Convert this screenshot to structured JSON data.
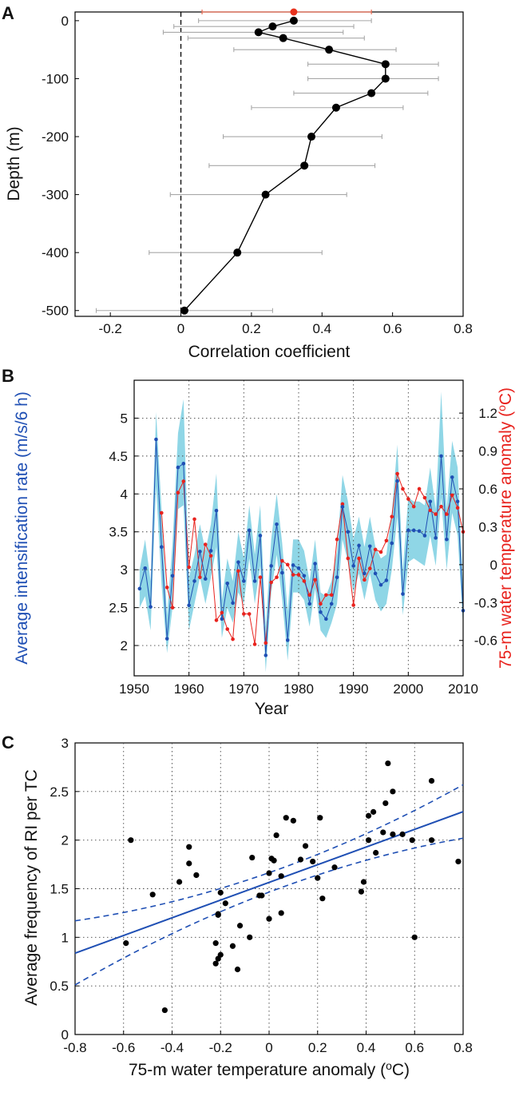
{
  "chart_data": [
    {
      "panel": "A",
      "type": "scatter",
      "xlabel": "Correlation coefficient",
      "ylabel": "Depth (m)",
      "xlim": [
        -0.3,
        0.8
      ],
      "ylim": [
        -510,
        15
      ],
      "xticks": [
        -0.2,
        0,
        0.2,
        0.4,
        0.6,
        0.8
      ],
      "yticks": [
        0,
        -100,
        -200,
        -300,
        -400,
        -500
      ],
      "reference_line": {
        "x": 0,
        "style": "dashed"
      },
      "highlight": {
        "depth": 15,
        "r": 0.32,
        "lo": 0.06,
        "hi": 0.54,
        "color": "#e8321e",
        "errcolor": "#e8684f"
      },
      "profile": {
        "color": "#000000",
        "errcolor": "#a8a8a8",
        "depth": [
          0,
          -10,
          -20,
          -30,
          -50,
          -75,
          -100,
          -125,
          -150,
          -200,
          -250,
          -300,
          -400,
          -500
        ],
        "r": [
          0.32,
          0.26,
          0.22,
          0.29,
          0.42,
          0.58,
          0.58,
          0.54,
          0.44,
          0.37,
          0.35,
          0.24,
          0.16,
          0.01
        ],
        "lo": [
          0.05,
          -0.02,
          -0.05,
          0.02,
          0.15,
          0.36,
          0.36,
          0.32,
          0.2,
          0.12,
          0.08,
          -0.03,
          -0.09,
          -0.24
        ],
        "hi": [
          0.54,
          0.49,
          0.46,
          0.52,
          0.61,
          0.73,
          0.73,
          0.7,
          0.63,
          0.57,
          0.55,
          0.47,
          0.4,
          0.26
        ]
      }
    },
    {
      "panel": "B",
      "type": "line",
      "xlabel": "Year",
      "ylabel_left": "Average intensification rate (m/s/6 h)",
      "ylabel_right": "75-m water temperature anomaly (",
      "ylabel_right_sup": "o",
      "ylabel_right_tail": "C)",
      "xlim": [
        1950,
        2010
      ],
      "ylim_left": [
        1.6,
        5.5
      ],
      "ylim_right": [
        -0.88,
        1.46
      ],
      "xticks": [
        1950,
        1960,
        1970,
        1980,
        1990,
        2000,
        2010
      ],
      "yticks_left": [
        2,
        2.5,
        3,
        3.5,
        4,
        4.5,
        5
      ],
      "yticks_right": [
        -0.6,
        -0.3,
        0,
        0.3,
        0.6,
        0.9,
        1.2
      ],
      "x": [
        1951,
        1952,
        1953,
        1954,
        1955,
        1956,
        1957,
        1958,
        1959,
        1960,
        1961,
        1962,
        1963,
        1964,
        1965,
        1966,
        1967,
        1968,
        1969,
        1970,
        1971,
        1972,
        1973,
        1974,
        1975,
        1976,
        1977,
        1978,
        1979,
        1980,
        1981,
        1982,
        1983,
        1984,
        1985,
        1986,
        1987,
        1988,
        1989,
        1990,
        1991,
        1992,
        1993,
        1994,
        1995,
        1996,
        1997,
        1998,
        1999,
        2000,
        2001,
        2002,
        2003,
        2004,
        2005,
        2006,
        2007,
        2008,
        2009,
        2010
      ],
      "series": [
        {
          "name": "intensification rate",
          "axis": "left",
          "color": "#1f4fb4",
          "band_color": "#8fd6e6",
          "values": [
            2.75,
            3.02,
            2.51,
            4.72,
            3.3,
            2.09,
            2.92,
            4.35,
            4.4,
            2.53,
            2.85,
            3.24,
            2.88,
            3.25,
            3.78,
            2.35,
            2.82,
            2.56,
            3.1,
            2.85,
            3.52,
            2.85,
            3.45,
            1.87,
            3.05,
            3.6,
            2.96,
            2.07,
            3.06,
            3.02,
            2.92,
            2.55,
            3.08,
            2.44,
            2.35,
            2.55,
            2.9,
            3.83,
            3.5,
            3.05,
            3.32,
            2.95,
            3.31,
            2.95,
            2.8,
            2.86,
            3.35,
            4.17,
            2.68,
            3.52,
            3.52,
            3.51,
            3.45,
            3.9,
            3.42,
            4.5,
            3.4,
            4.22,
            3.9,
            2.46
          ],
          "band_low": [
            2.5,
            2.65,
            2.2,
            4.1,
            2.8,
            1.9,
            2.5,
            3.8,
            3.85,
            2.2,
            2.55,
            2.9,
            2.55,
            2.9,
            3.3,
            2.1,
            2.5,
            2.3,
            2.7,
            2.55,
            3.15,
            2.55,
            3.05,
            1.65,
            2.7,
            3.2,
            2.6,
            1.8,
            2.7,
            2.7,
            2.6,
            2.25,
            2.75,
            2.2,
            2.1,
            2.3,
            2.55,
            3.4,
            3.1,
            2.7,
            2.95,
            2.6,
            2.95,
            2.6,
            2.45,
            2.55,
            3.0,
            3.7,
            2.4,
            3.1,
            3.15,
            3.1,
            3.05,
            3.45,
            3.05,
            3.95,
            3.0,
            3.75,
            3.45,
            2.25
          ],
          "band_high": [
            3.0,
            3.4,
            2.85,
            5.08,
            3.8,
            2.4,
            3.35,
            4.8,
            5.25,
            2.9,
            3.2,
            3.6,
            3.25,
            3.6,
            4.27,
            2.6,
            3.15,
            2.85,
            3.5,
            3.15,
            3.85,
            3.2,
            3.85,
            2.25,
            3.4,
            4.0,
            3.35,
            2.45,
            3.4,
            3.4,
            3.25,
            2.85,
            3.4,
            2.7,
            2.65,
            2.85,
            3.25,
            4.25,
            3.9,
            3.4,
            3.7,
            3.3,
            3.7,
            3.3,
            3.15,
            3.2,
            3.75,
            4.65,
            3.0,
            3.95,
            3.9,
            3.9,
            3.85,
            4.35,
            3.8,
            5.35,
            3.8,
            4.7,
            4.35,
            2.75
          ]
        },
        {
          "name": "75-m water temperature anomaly",
          "axis": "right",
          "color": "#e8231e",
          "values": [
            null,
            null,
            null,
            null,
            0.41,
            -0.18,
            -0.34,
            0.57,
            0.66,
            -0.02,
            0.36,
            -0.1,
            0.16,
            0.07,
            -0.44,
            -0.38,
            -0.51,
            -0.59,
            -0.05,
            -0.39,
            -0.39,
            -0.63,
            -0.1,
            -0.62,
            -0.14,
            -0.1,
            0.03,
            0.0,
            -0.08,
            -0.08,
            -0.13,
            -0.24,
            -0.12,
            -0.31,
            -0.24,
            -0.24,
            0.2,
            0.48,
            0.05,
            -0.32,
            0.05,
            -0.12,
            -0.03,
            0.12,
            0.1,
            0.19,
            0.38,
            0.72,
            0.6,
            0.52,
            0.46,
            0.6,
            0.53,
            0.43,
            0.4,
            0.46,
            0.4,
            0.55,
            0.45,
            0.26
          ]
        }
      ]
    },
    {
      "panel": "C",
      "type": "scatter",
      "xlabel": "75-m water temperature anomaly (",
      "xlabel_sup": "o",
      "xlabel_tail": "C)",
      "ylabel": "Average frequency of RI per TC",
      "xlim": [
        -0.8,
        0.8
      ],
      "ylim": [
        0,
        3
      ],
      "xticks": [
        -0.8,
        -0.6,
        -0.4,
        -0.2,
        0,
        0.2,
        0.4,
        0.6,
        0.8
      ],
      "yticks": [
        0,
        0.5,
        1,
        1.5,
        2,
        2.5,
        3
      ],
      "fit": {
        "intercept": 1.565,
        "slope": 0.91,
        "color": "#1f4fb4"
      },
      "ci": {
        "upper_at_xmin": 1.17,
        "upper_at_xmax": 2.57,
        "lower_at_xmin": 0.51,
        "lower_at_xmax": 2.02
      },
      "points": {
        "color": "#000000",
        "x": [
          -0.59,
          -0.57,
          -0.48,
          -0.43,
          -0.37,
          -0.33,
          -0.33,
          -0.3,
          -0.22,
          -0.22,
          -0.21,
          -0.21,
          -0.21,
          -0.2,
          -0.2,
          -0.18,
          -0.15,
          -0.13,
          -0.12,
          -0.08,
          -0.07,
          -0.04,
          -0.03,
          0.0,
          0.0,
          0.01,
          0.02,
          0.03,
          0.05,
          0.05,
          0.07,
          0.1,
          0.13,
          0.15,
          0.18,
          0.2,
          0.21,
          0.22,
          0.27,
          0.38,
          0.39,
          0.41,
          0.41,
          0.43,
          0.44,
          0.47,
          0.48,
          0.49,
          0.51,
          0.51,
          0.55,
          0.59,
          0.6,
          0.67,
          0.67,
          0.78
        ],
        "y": [
          0.94,
          2.0,
          1.44,
          0.25,
          1.57,
          1.93,
          1.76,
          1.64,
          0.73,
          0.94,
          0.78,
          1.23,
          1.24,
          0.82,
          1.46,
          1.35,
          0.91,
          0.67,
          1.12,
          1.0,
          1.82,
          1.43,
          1.43,
          1.19,
          1.66,
          1.81,
          1.79,
          2.05,
          1.63,
          1.25,
          2.23,
          2.2,
          1.8,
          1.94,
          1.78,
          1.61,
          2.23,
          1.4,
          1.72,
          1.47,
          1.57,
          2.0,
          2.25,
          2.29,
          1.87,
          2.08,
          2.38,
          2.79,
          2.06,
          2.5,
          2.06,
          2.0,
          1.0,
          2.61,
          2.0,
          1.78
        ]
      }
    }
  ]
}
